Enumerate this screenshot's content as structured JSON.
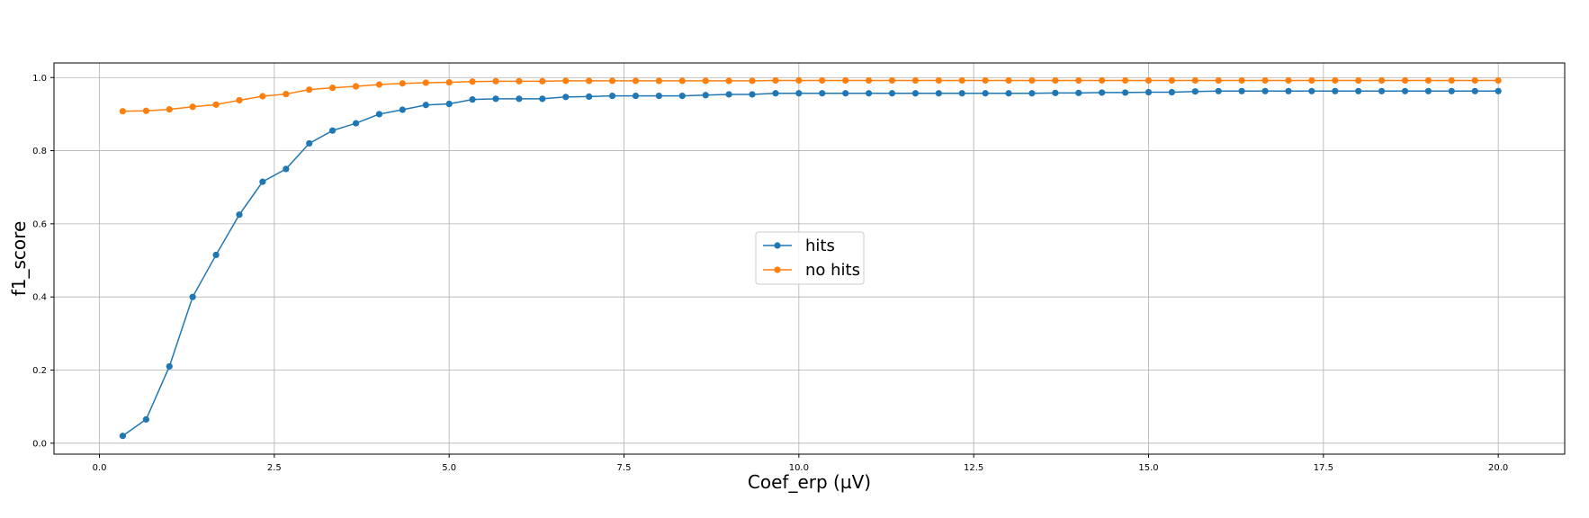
{
  "chart_data": {
    "type": "line",
    "title": "",
    "xlabel": "Coef_erp (µV)",
    "ylabel": "f1_score",
    "xlim": [
      -0.65,
      20.95
    ],
    "ylim": [
      -0.03,
      1.04
    ],
    "xticks": [
      0.0,
      2.5,
      5.0,
      7.5,
      10.0,
      12.5,
      15.0,
      17.5,
      20.0
    ],
    "xtick_labels": [
      "0.0",
      "2.5",
      "5.0",
      "7.5",
      "10.0",
      "12.5",
      "15.0",
      "17.5",
      "20.0"
    ],
    "yticks": [
      0.0,
      0.2,
      0.4,
      0.6,
      0.8,
      1.0
    ],
    "ytick_labels": [
      "0.0",
      "0.2",
      "0.4",
      "0.6",
      "0.8",
      "1.0"
    ],
    "grid": true,
    "legend_position": "center",
    "x": [
      0.333,
      0.667,
      1.0,
      1.333,
      1.667,
      2.0,
      2.333,
      2.667,
      3.0,
      3.333,
      3.667,
      4.0,
      4.333,
      4.667,
      5.0,
      5.333,
      5.667,
      6.0,
      6.333,
      6.667,
      7.0,
      7.333,
      7.667,
      8.0,
      8.333,
      8.667,
      9.0,
      9.333,
      9.667,
      10.0,
      10.333,
      10.667,
      11.0,
      11.333,
      11.667,
      12.0,
      12.333,
      12.667,
      13.0,
      13.333,
      13.667,
      14.0,
      14.333,
      14.667,
      15.0,
      15.333,
      15.667,
      16.0,
      16.333,
      16.667,
      17.0,
      17.333,
      17.667,
      18.0,
      18.333,
      18.667,
      19.0,
      19.333,
      19.667,
      20.0
    ],
    "series": [
      {
        "name": "hits",
        "color": "#1f77b4",
        "values": [
          0.02,
          0.065,
          0.21,
          0.4,
          0.515,
          0.625,
          0.715,
          0.75,
          0.82,
          0.855,
          0.875,
          0.9,
          0.912,
          0.925,
          0.928,
          0.94,
          0.942,
          0.942,
          0.942,
          0.947,
          0.948,
          0.95,
          0.95,
          0.95,
          0.95,
          0.952,
          0.954,
          0.954,
          0.957,
          0.957,
          0.957,
          0.957,
          0.957,
          0.957,
          0.957,
          0.957,
          0.957,
          0.957,
          0.957,
          0.957,
          0.958,
          0.958,
          0.959,
          0.959,
          0.96,
          0.96,
          0.962,
          0.963,
          0.963,
          0.963,
          0.963,
          0.963,
          0.963,
          0.963,
          0.963,
          0.963,
          0.963,
          0.963,
          0.963,
          0.963
        ]
      },
      {
        "name": "no hits",
        "color": "#ff7f0e",
        "values": [
          0.908,
          0.909,
          0.913,
          0.92,
          0.926,
          0.938,
          0.949,
          0.955,
          0.967,
          0.972,
          0.976,
          0.981,
          0.984,
          0.986,
          0.987,
          0.989,
          0.99,
          0.99,
          0.99,
          0.991,
          0.991,
          0.991,
          0.991,
          0.991,
          0.991,
          0.991,
          0.991,
          0.991,
          0.992,
          0.992,
          0.992,
          0.992,
          0.992,
          0.992,
          0.992,
          0.992,
          0.992,
          0.992,
          0.992,
          0.992,
          0.992,
          0.992,
          0.992,
          0.992,
          0.992,
          0.992,
          0.992,
          0.992,
          0.992,
          0.992,
          0.992,
          0.992,
          0.992,
          0.992,
          0.992,
          0.992,
          0.992,
          0.992,
          0.992,
          0.992
        ]
      }
    ]
  }
}
